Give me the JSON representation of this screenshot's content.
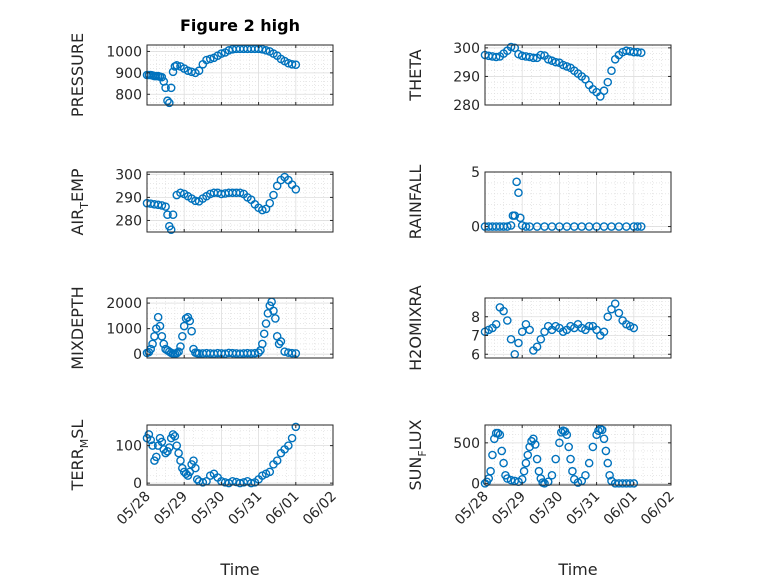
{
  "figure": {
    "title": "Figure 2 high",
    "xlabel": "Time",
    "marker_color": "#0072BD",
    "x_ticks": [
      "05/28",
      "05/29",
      "05/30",
      "05/31",
      "06/01",
      "06/02"
    ],
    "x_range": [
      "05/28",
      "06/02"
    ]
  },
  "chart_data": [
    {
      "type": "scatter",
      "ylabel": "PRESSURE",
      "ylim": [
        750,
        1030
      ],
      "yticks": [
        800,
        900,
        1000
      ],
      "grid": true,
      "x_unit": "days since 05/28",
      "x": [
        0,
        0.05,
        0.1,
        0.15,
        0.2,
        0.25,
        0.3,
        0.35,
        0.4,
        0.45,
        0.5,
        0.55,
        0.6,
        0.65,
        0.7,
        0.75,
        0.8,
        0.9,
        1.0,
        1.1,
        1.2,
        1.3,
        1.4,
        1.5,
        1.6,
        1.7,
        1.8,
        1.9,
        2.0,
        2.1,
        2.2,
        2.3,
        2.4,
        2.5,
        2.6,
        2.7,
        2.8,
        2.9,
        3.0,
        3.1,
        3.2,
        3.3,
        3.4,
        3.5,
        3.6,
        3.7,
        3.8,
        3.9,
        4.0
      ],
      "y": [
        890,
        890,
        890,
        888,
        885,
        885,
        885,
        882,
        880,
        860,
        830,
        770,
        760,
        830,
        905,
        930,
        935,
        930,
        920,
        910,
        905,
        900,
        910,
        940,
        960,
        965,
        970,
        980,
        990,
        995,
        1005,
        1010,
        1012,
        1012,
        1012,
        1012,
        1012,
        1012,
        1012,
        1010,
        1005,
        1000,
        990,
        980,
        965,
        955,
        945,
        940,
        938
      ]
    },
    {
      "type": "scatter",
      "ylabel": "THETA",
      "ylim": [
        280,
        301
      ],
      "yticks": [
        280,
        290,
        300
      ],
      "grid": true,
      "x_unit": "days since 05/28",
      "x": [
        0,
        0.1,
        0.2,
        0.3,
        0.4,
        0.5,
        0.6,
        0.7,
        0.8,
        0.9,
        1.0,
        1.1,
        1.2,
        1.3,
        1.4,
        1.5,
        1.6,
        1.7,
        1.8,
        1.9,
        2.0,
        2.1,
        2.2,
        2.3,
        2.4,
        2.5,
        2.6,
        2.7,
        2.8,
        2.9,
        3.0,
        3.1,
        3.2,
        3.3,
        3.4,
        3.5,
        3.6,
        3.7,
        3.8,
        3.9,
        4.0,
        4.1,
        4.2
      ],
      "y": [
        297.5,
        297.2,
        297,
        296.8,
        297,
        298,
        299,
        300.3,
        300,
        297.8,
        297.2,
        297,
        296.8,
        296.5,
        296.5,
        297.5,
        297.3,
        296,
        295.5,
        295,
        294.8,
        294,
        293.5,
        293,
        292,
        291,
        290,
        289,
        287,
        285.5,
        284.5,
        283,
        285,
        288,
        292,
        296,
        297.5,
        298.5,
        299,
        298.8,
        298.5,
        298.5,
        298.3
      ]
    },
    {
      "type": "scatter",
      "ylabel": "AIR_TEMP",
      "ylim": [
        275,
        301
      ],
      "yticks": [
        280,
        290,
        300
      ],
      "grid": true,
      "x_unit": "days since 05/28",
      "x": [
        0,
        0.1,
        0.2,
        0.3,
        0.4,
        0.5,
        0.55,
        0.6,
        0.65,
        0.7,
        0.8,
        0.9,
        1.0,
        1.1,
        1.2,
        1.3,
        1.4,
        1.5,
        1.6,
        1.7,
        1.8,
        1.9,
        2.0,
        2.1,
        2.2,
        2.3,
        2.4,
        2.5,
        2.6,
        2.7,
        2.8,
        2.9,
        3.0,
        3.1,
        3.2,
        3.3,
        3.4,
        3.5,
        3.6,
        3.7,
        3.8,
        3.9,
        4.0
      ],
      "y": [
        287.5,
        287.3,
        287,
        286.8,
        286.5,
        286,
        282.5,
        277.5,
        276,
        282.5,
        291,
        292,
        291.5,
        290.5,
        289.5,
        288.5,
        288.3,
        289.5,
        290.5,
        291.5,
        292,
        292,
        291.5,
        291.7,
        292,
        292,
        292,
        292,
        291.5,
        290,
        289,
        287,
        285.5,
        284.5,
        285,
        287.5,
        291,
        295,
        297.5,
        298.8,
        297.5,
        295.5,
        293.5
      ]
    },
    {
      "type": "scatter",
      "ylabel": "RAINFALL",
      "ylim": [
        -0.5,
        5
      ],
      "yticks": [
        0,
        5
      ],
      "grid": true,
      "x_unit": "days since 05/28",
      "x": [
        0,
        0.1,
        0.2,
        0.3,
        0.4,
        0.5,
        0.6,
        0.7,
        0.75,
        0.8,
        0.85,
        0.9,
        0.95,
        1.0,
        1.1,
        1.2,
        1.4,
        1.6,
        1.8,
        2.0,
        2.2,
        2.4,
        2.6,
        2.8,
        3.0,
        3.2,
        3.4,
        3.6,
        3.8,
        4.0,
        4.1,
        4.2
      ],
      "y": [
        0,
        0,
        0,
        0,
        0,
        0,
        0,
        0.1,
        1.0,
        1.0,
        4.1,
        3.1,
        0.8,
        0.1,
        0,
        0,
        0,
        0,
        0,
        0,
        0,
        0,
        0,
        0,
        0,
        0,
        0,
        0,
        0,
        0,
        0,
        0
      ]
    },
    {
      "type": "scatter",
      "ylabel": "MIXDEPTH",
      "ylim": [
        -150,
        2200
      ],
      "yticks": [
        0,
        1000,
        2000
      ],
      "grid": true,
      "x_unit": "days since 05/28",
      "x": [
        0,
        0.05,
        0.1,
        0.15,
        0.2,
        0.25,
        0.3,
        0.35,
        0.4,
        0.45,
        0.5,
        0.55,
        0.6,
        0.65,
        0.7,
        0.75,
        0.8,
        0.85,
        0.9,
        0.95,
        1.0,
        1.05,
        1.1,
        1.15,
        1.2,
        1.25,
        1.3,
        1.35,
        1.4,
        1.5,
        1.6,
        1.7,
        1.8,
        1.9,
        2.0,
        2.1,
        2.2,
        2.3,
        2.4,
        2.5,
        2.6,
        2.7,
        2.8,
        2.9,
        3.0,
        3.05,
        3.1,
        3.15,
        3.2,
        3.25,
        3.3,
        3.35,
        3.4,
        3.45,
        3.5,
        3.55,
        3.6,
        3.7,
        3.8,
        3.9,
        4.0
      ],
      "y": [
        50,
        80,
        200,
        400,
        700,
        1000,
        1450,
        1100,
        700,
        400,
        200,
        150,
        100,
        50,
        30,
        20,
        40,
        100,
        300,
        700,
        1100,
        1400,
        1450,
        1300,
        900,
        200,
        60,
        40,
        30,
        30,
        40,
        30,
        20,
        40,
        30,
        20,
        50,
        40,
        30,
        20,
        30,
        40,
        30,
        40,
        60,
        150,
        400,
        800,
        1200,
        1600,
        1900,
        2050,
        1700,
        1400,
        700,
        400,
        500,
        100,
        60,
        40,
        30
      ]
    },
    {
      "type": "scatter",
      "ylabel": "H2OMIXRA",
      "ylim": [
        5.8,
        9
      ],
      "yticks": [
        6,
        7,
        8
      ],
      "grid": true,
      "x_unit": "days since 05/28",
      "x": [
        0,
        0.1,
        0.2,
        0.3,
        0.4,
        0.5,
        0.6,
        0.7,
        0.8,
        0.9,
        1.0,
        1.1,
        1.2,
        1.3,
        1.4,
        1.5,
        1.6,
        1.7,
        1.8,
        1.9,
        2.0,
        2.1,
        2.2,
        2.3,
        2.4,
        2.5,
        2.6,
        2.7,
        2.8,
        2.9,
        3.0,
        3.1,
        3.2,
        3.3,
        3.4,
        3.5,
        3.6,
        3.7,
        3.8,
        3.9,
        4.0
      ],
      "y": [
        7.2,
        7.3,
        7.4,
        7.6,
        8.5,
        8.3,
        7.8,
        6.8,
        6.0,
        6.6,
        7.2,
        7.6,
        7.3,
        6.2,
        6.4,
        6.8,
        7.2,
        7.5,
        7.3,
        7.5,
        7.4,
        7.2,
        7.3,
        7.5,
        7.4,
        7.6,
        7.4,
        7.3,
        7.5,
        7.5,
        7.3,
        7.0,
        7.2,
        8.0,
        8.4,
        8.7,
        8.2,
        7.8,
        7.6,
        7.5,
        7.4
      ]
    },
    {
      "type": "scatter",
      "ylabel": "TERR_MSL",
      "ylim": [
        -5,
        155
      ],
      "yticks": [
        0,
        100
      ],
      "grid": true,
      "x_unit": "days since 05/28",
      "x": [
        0,
        0.05,
        0.1,
        0.15,
        0.2,
        0.25,
        0.3,
        0.35,
        0.4,
        0.45,
        0.5,
        0.55,
        0.6,
        0.65,
        0.7,
        0.75,
        0.8,
        0.85,
        0.9,
        0.95,
        1.0,
        1.05,
        1.1,
        1.15,
        1.2,
        1.25,
        1.3,
        1.35,
        1.4,
        1.5,
        1.6,
        1.7,
        1.8,
        1.9,
        2.0,
        2.1,
        2.2,
        2.3,
        2.4,
        2.5,
        2.6,
        2.7,
        2.8,
        2.9,
        3.0,
        3.1,
        3.2,
        3.3,
        3.4,
        3.5,
        3.6,
        3.7,
        3.8,
        3.9,
        4.0
      ],
      "y": [
        120,
        130,
        115,
        100,
        60,
        70,
        100,
        120,
        110,
        90,
        80,
        85,
        95,
        120,
        130,
        125,
        100,
        80,
        60,
        40,
        30,
        25,
        20,
        30,
        50,
        60,
        40,
        10,
        5,
        2,
        5,
        20,
        25,
        15,
        5,
        2,
        0,
        5,
        3,
        0,
        2,
        5,
        0,
        2,
        10,
        20,
        25,
        30,
        50,
        60,
        80,
        90,
        100,
        120,
        150
      ]
    },
    {
      "type": "scatter",
      "ylabel": "SUN_FLUX",
      "ylim": [
        -20,
        720
      ],
      "yticks": [
        0,
        500
      ],
      "grid": true,
      "x_unit": "days since 05/28",
      "x": [
        0,
        0.05,
        0.1,
        0.15,
        0.2,
        0.25,
        0.3,
        0.35,
        0.4,
        0.45,
        0.5,
        0.55,
        0.6,
        0.7,
        0.8,
        0.9,
        1.0,
        1.05,
        1.1,
        1.15,
        1.2,
        1.25,
        1.3,
        1.35,
        1.4,
        1.45,
        1.5,
        1.55,
        1.6,
        1.7,
        1.8,
        1.9,
        2.0,
        2.05,
        2.1,
        2.15,
        2.2,
        2.25,
        2.3,
        2.35,
        2.4,
        2.5,
        2.6,
        2.7,
        2.8,
        2.9,
        3.0,
        3.05,
        3.1,
        3.15,
        3.2,
        3.25,
        3.3,
        3.35,
        3.4,
        3.5,
        3.6,
        3.7,
        3.8,
        3.9,
        4.0
      ],
      "y": [
        0,
        20,
        60,
        150,
        350,
        550,
        620,
        620,
        600,
        400,
        250,
        100,
        60,
        40,
        30,
        20,
        50,
        150,
        250,
        350,
        450,
        520,
        550,
        480,
        300,
        150,
        60,
        10,
        0,
        20,
        100,
        300,
        500,
        630,
        650,
        640,
        600,
        450,
        300,
        150,
        50,
        10,
        30,
        100,
        250,
        450,
        600,
        650,
        670,
        660,
        550,
        400,
        250,
        100,
        30,
        0,
        0,
        0,
        0,
        0,
        0
      ]
    }
  ]
}
